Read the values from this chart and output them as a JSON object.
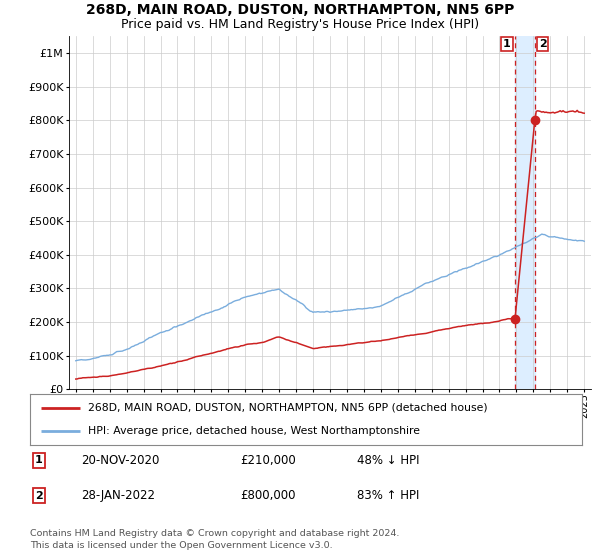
{
  "title1": "268D, MAIN ROAD, DUSTON, NORTHAMPTON, NN5 6PP",
  "title2": "Price paid vs. HM Land Registry's House Price Index (HPI)",
  "legend_line1": "268D, MAIN ROAD, DUSTON, NORTHAMPTON, NN5 6PP (detached house)",
  "legend_line2": "HPI: Average price, detached house, West Northamptonshire",
  "footnote": "Contains HM Land Registry data © Crown copyright and database right 2024.\nThis data is licensed under the Open Government Licence v3.0.",
  "transaction1_date": "20-NOV-2020",
  "transaction1_price": "210,000",
  "transaction1_hpi": "48% ↓ HPI",
  "transaction2_date": "28-JAN-2022",
  "transaction2_price": "800,000",
  "transaction2_hpi": "83% ↑ HPI",
  "red_color": "#cc2222",
  "blue_color": "#7aaddd",
  "highlight_color": "#ddeeff",
  "grid_color": "#cccccc",
  "background_color": "#ffffff",
  "ylim": [
    0,
    1050000
  ],
  "yticks": [
    0,
    100000,
    200000,
    300000,
    400000,
    500000,
    600000,
    700000,
    800000,
    900000,
    1000000
  ],
  "ytick_labels": [
    "£0",
    "£100K",
    "£200K",
    "£300K",
    "£400K",
    "£500K",
    "£600K",
    "£700K",
    "£800K",
    "£900K",
    "£1M"
  ],
  "year_start": 1995,
  "year_end": 2025,
  "transaction1_year": 2020.9,
  "transaction2_year": 2022.08,
  "transaction1_value": 210000,
  "transaction2_value": 800000
}
